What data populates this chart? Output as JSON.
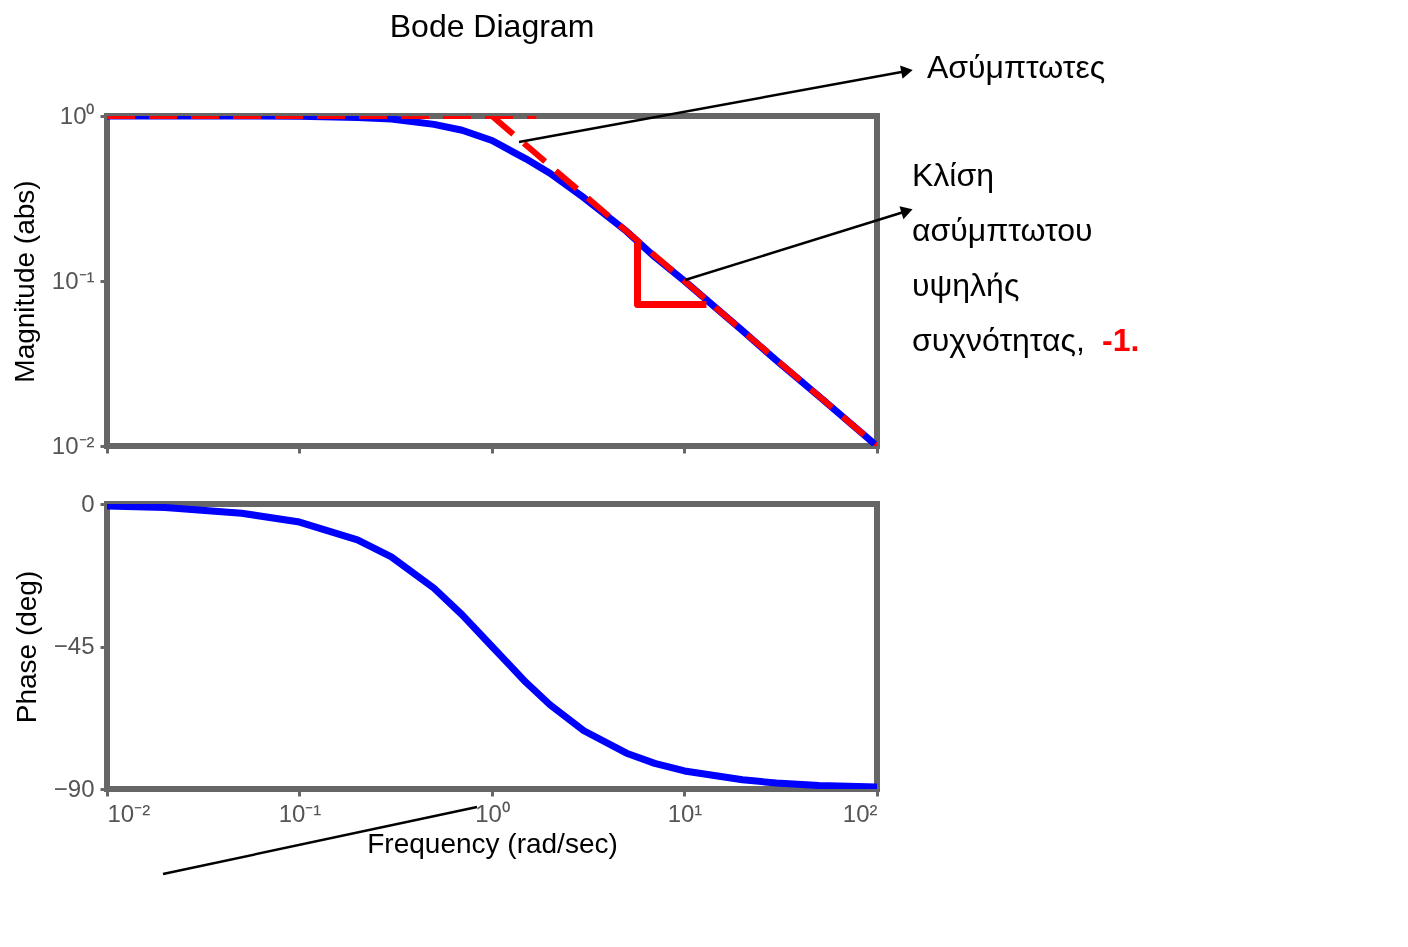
{
  "chart_data": [
    {
      "type": "line",
      "title": "Bode Diagram",
      "ylabel": "Magnitude (abs)",
      "log": "xy",
      "xlim": [
        0.01,
        100
      ],
      "ylim": [
        0.01,
        1
      ],
      "xticks": [
        0.01,
        0.1,
        1,
        10,
        100
      ],
      "yticks": [
        {
          "value": 0.01,
          "label": "10⁻²"
        },
        {
          "value": 0.1,
          "label": "10⁻¹"
        },
        {
          "value": 1,
          "label": "10⁰"
        }
      ],
      "tick_labels": "y",
      "grid": false,
      "series": [
        {
          "color": "#0000ff",
          "x": [
            0.01,
            0.02,
            0.05,
            0.1,
            0.2,
            0.3,
            0.5,
            0.7,
            1,
            1.5,
            2,
            3,
            5,
            7,
            10,
            20,
            30,
            50,
            100
          ],
          "values": [
            1,
            1,
            1,
            0.995,
            0.98,
            0.96,
            0.89,
            0.82,
            0.71,
            0.55,
            0.45,
            0.32,
            0.2,
            0.14,
            0.1,
            0.05,
            0.033,
            0.02,
            0.01
          ]
        },
        {
          "color": "#ff0000",
          "line_style": "dashed",
          "x": [
            0.01,
            1.7
          ],
          "values": [
            1,
            1
          ]
        },
        {
          "color": "#ff0000",
          "line_style": "dashed",
          "x": [
            1,
            100
          ],
          "values": [
            1,
            0.01
          ]
        },
        {
          "color": "#ff0000",
          "x": [
            5.7,
            5.7,
            13
          ],
          "values": [
            0.17,
            0.072,
            0.072
          ]
        }
      ],
      "annotations": [
        "Ασύμπτωτες",
        "Κλίση ασύμπτωτου υψηλής συχνότητας,",
        "-1."
      ]
    },
    {
      "type": "line",
      "ylabel": "Phase (deg)",
      "xlabel": "Frequency  (rad/sec)",
      "log": "x",
      "xlim": [
        0.01,
        100
      ],
      "ylim": [
        -90,
        0
      ],
      "xticks": [
        {
          "value": 0.01,
          "label": "10⁻²"
        },
        {
          "value": 0.1,
          "label": "10⁻¹"
        },
        {
          "value": 1,
          "label": "10⁰"
        },
        {
          "value": 10,
          "label": "10¹"
        },
        {
          "value": 100,
          "label": "10²"
        }
      ],
      "yticks": [
        -90,
        -45,
        0
      ],
      "grid": false,
      "series": [
        {
          "color": "#0000ff",
          "x": [
            0.01,
            0.02,
            0.05,
            0.1,
            0.2,
            0.3,
            0.5,
            0.7,
            1,
            1.5,
            2,
            3,
            5,
            7,
            10,
            20,
            30,
            50,
            100
          ],
          "values": [
            -0.6,
            -1.1,
            -2.9,
            -5.7,
            -11.3,
            -16.7,
            -26.6,
            -35,
            -45,
            -56.3,
            -63.4,
            -71.6,
            -78.7,
            -81.9,
            -84.3,
            -87.1,
            -88.1,
            -88.9,
            -89.4
          ]
        }
      ]
    }
  ]
}
